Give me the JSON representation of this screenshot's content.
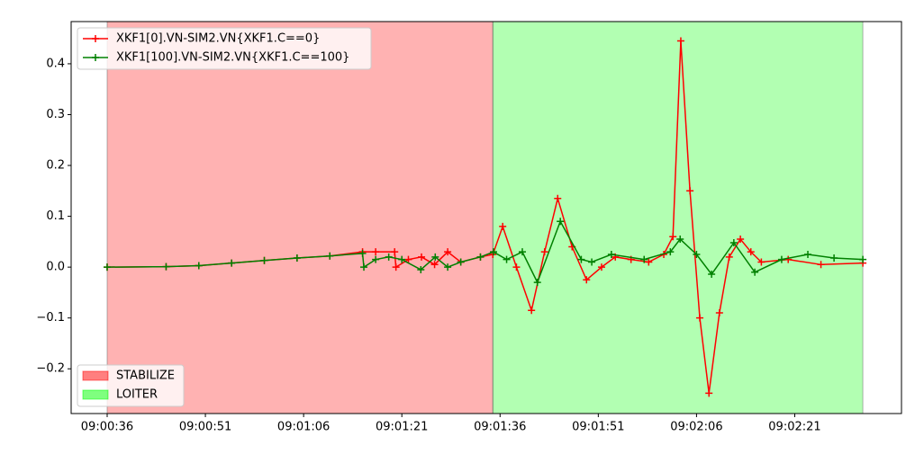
{
  "chart_data": {
    "type": "line",
    "x": null,
    "xlim": [
      30.5,
      157.3
    ],
    "xticks": [
      {
        "value": 36,
        "label": "09:00:36"
      },
      {
        "value": 51,
        "label": "09:00:51"
      },
      {
        "value": 66,
        "label": "09:01:06"
      },
      {
        "value": 81,
        "label": "09:01:21"
      },
      {
        "value": 96,
        "label": "09:01:36"
      },
      {
        "value": 111,
        "label": "09:01:51"
      },
      {
        "value": 126,
        "label": "09:02:06"
      },
      {
        "value": 141,
        "label": "09:02:21"
      }
    ],
    "ylim": [
      -0.288,
      0.483
    ],
    "yticks": [
      {
        "value": -0.2,
        "label": "−0.2"
      },
      {
        "value": -0.1,
        "label": "−0.1"
      },
      {
        "value": 0,
        "label": "0.0"
      },
      0.1,
      0.2,
      0.3,
      0.4
    ],
    "legend": "upper left",
    "series": [
      {
        "name": "XKF1[0].VN-SIM2.VN{XKF1.C==0}",
        "color": "#ff0000",
        "x": [
          36,
          45,
          50,
          55,
          60,
          65,
          70,
          75,
          77,
          79.9,
          80.1,
          82,
          84,
          86,
          88,
          90,
          93,
          94.9,
          96.4,
          98.5,
          100.8,
          102.8,
          104.8,
          107,
          109.2,
          111.5,
          113.6,
          116,
          118.7,
          121,
          122.4,
          123.6,
          125,
          126.5,
          127.9,
          129.5,
          131,
          132.7,
          134.3,
          135.9,
          140,
          145,
          151.4
        ],
        "values": [
          0,
          0.001,
          0.003,
          0.008,
          0.013,
          0.018,
          0.022,
          0.03,
          0.03,
          0.03,
          0,
          0.015,
          0.02,
          0.005,
          0.03,
          0.01,
          0.02,
          0.025,
          0.08,
          0.0,
          -0.085,
          0.03,
          0.135,
          0.04,
          -0.025,
          0.0,
          0.02,
          0.015,
          0.01,
          0.025,
          0.06,
          0.445,
          0.15,
          -0.1,
          -0.248,
          -0.09,
          0.02,
          0.055,
          0.03,
          0.01,
          0.015,
          0.005,
          0.008
        ]
      },
      {
        "name": "XKF1[100].VN-SIM2.VN{XKF1.C==100}",
        "color": "#008000",
        "x": [
          36,
          45,
          50,
          55,
          60,
          65,
          70,
          75,
          75.2,
          77,
          79,
          81,
          83.9,
          86.1,
          88,
          90,
          93,
          95,
          97,
          99.4,
          101.7,
          105.2,
          108.4,
          110,
          113,
          118,
          122,
          123.5,
          126,
          128.3,
          131.7,
          134.9,
          139,
          143,
          147,
          151.4
        ],
        "values": [
          0,
          0.001,
          0.003,
          0.008,
          0.013,
          0.018,
          0.022,
          0.027,
          0,
          0.015,
          0.02,
          0.015,
          -0.005,
          0.02,
          0,
          0.01,
          0.02,
          0.03,
          0.015,
          0.03,
          -0.03,
          0.09,
          0.015,
          0.01,
          0.025,
          0.015,
          0.03,
          0.055,
          0.025,
          -0.014,
          0.048,
          -0.01,
          0.015,
          0.025,
          0.018,
          0.015
        ]
      }
    ],
    "regions": [
      {
        "name": "STABILIZE",
        "color": "#ff0000",
        "start": 36.0,
        "end": 94.9
      },
      {
        "name": "LOITER",
        "color": "#00ff00",
        "start": 94.9,
        "end": 151.4
      }
    ]
  }
}
